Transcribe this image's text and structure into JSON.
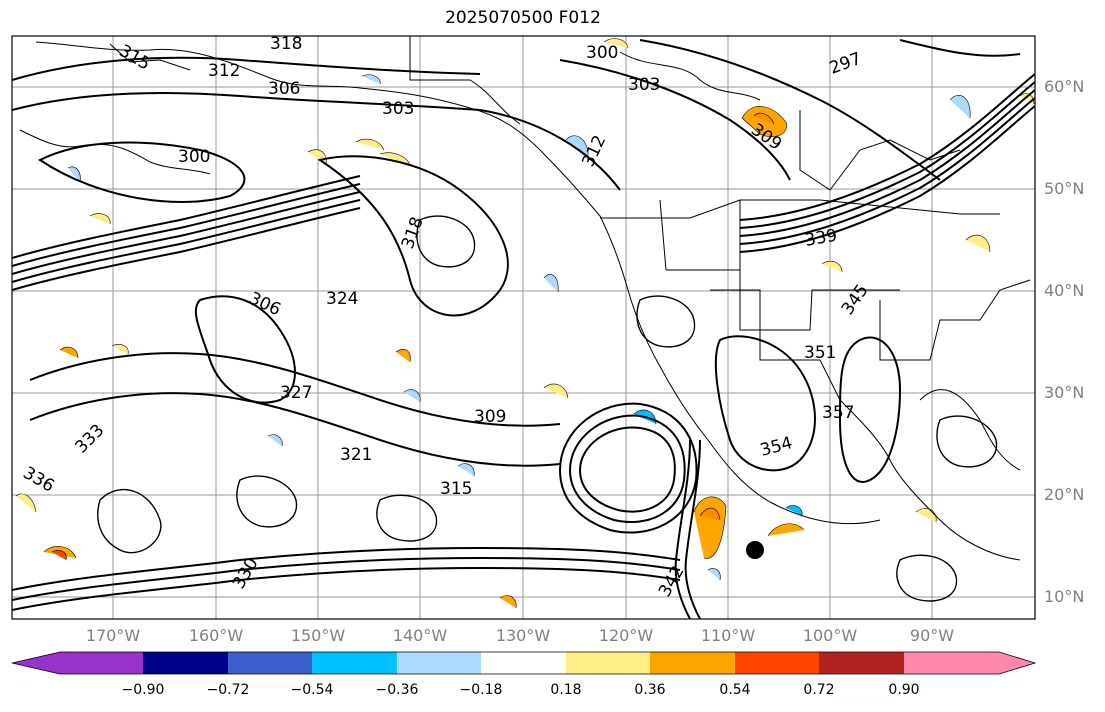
{
  "title": "2025070500 F012",
  "latitude_labels": [
    "60°N",
    "50°N",
    "40°N",
    "30°N",
    "20°N",
    "10°N"
  ],
  "longitude_labels": [
    "170°W",
    "160°W",
    "150°W",
    "140°W",
    "130°W",
    "120°W",
    "110°W",
    "100°W",
    "90°W"
  ],
  "contour_labels": [
    "318",
    "315",
    "312",
    "309",
    "306",
    "303",
    "300",
    "297",
    "300",
    "303",
    "306",
    "309",
    "312",
    "315",
    "318",
    "321",
    "324",
    "327",
    "330",
    "333",
    "336",
    "339",
    "342",
    "345",
    "351",
    "354",
    "357"
  ],
  "colorbar": {
    "tick_labels": [
      "−0.90",
      "−0.72",
      "−0.54",
      "−0.36",
      "−0.18",
      "0.18",
      "0.36",
      "0.54",
      "0.72",
      "0.90"
    ],
    "colors": [
      "#9932cc",
      "#00008b",
      "#3a5fcd",
      "#00bfff",
      "#add8ff",
      "#ffffff",
      "#ffee88",
      "#ffa500",
      "#ff4500",
      "#b22222",
      "#ff88aa"
    ]
  },
  "colors": {
    "positive_fill": "#ffee88",
    "positive_strong_fill": "#ffa500",
    "negative_fill": "#add8ff",
    "contour_line": "#000000",
    "grid_line": "#999999",
    "coastline": "#000000",
    "tick_label": "#808080"
  }
}
